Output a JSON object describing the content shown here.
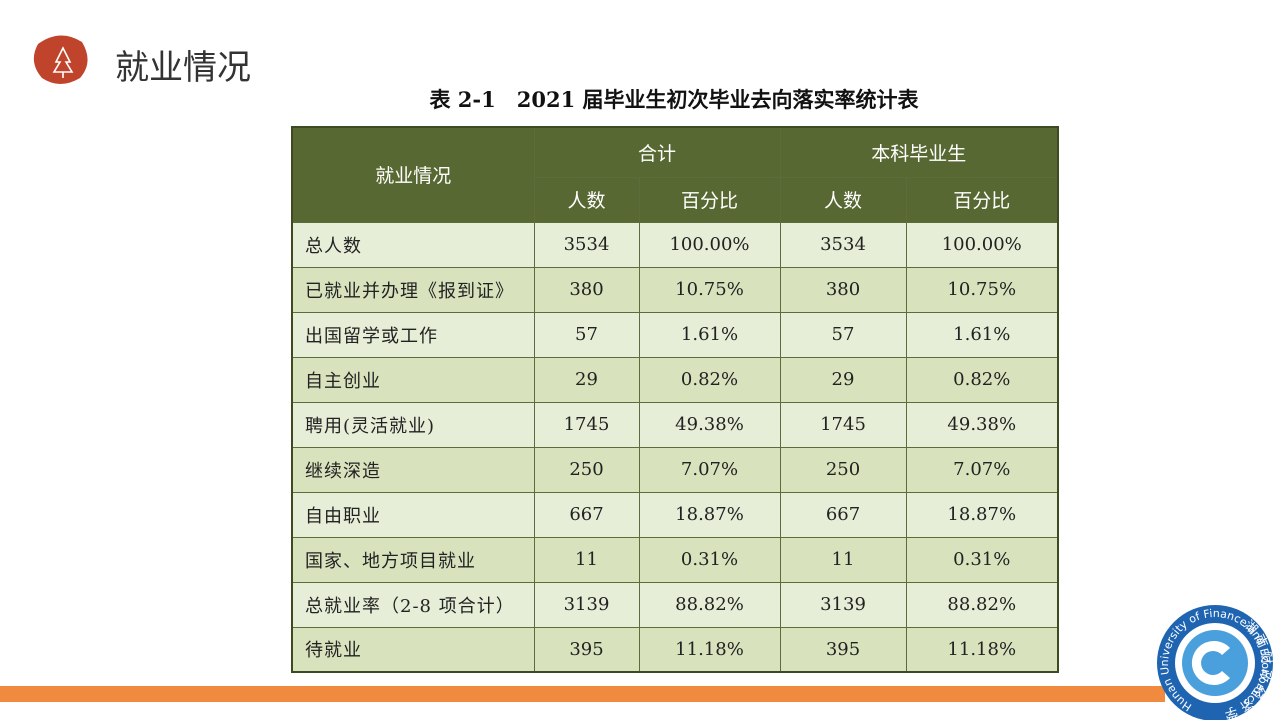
{
  "header": {
    "title": "就业情况"
  },
  "logo": {
    "cn": "湖南财政经济学院",
    "en": "Hunan University of Finance and Economics"
  },
  "table": {
    "caption": "表 2-1　2021 届毕业生初次毕业去向落实率统计表",
    "corner": "就业情况",
    "groups": [
      "合计",
      "本科毕业生"
    ],
    "subheaders": [
      "人数",
      "百分比",
      "人数",
      "百分比"
    ],
    "rows": [
      [
        "总人数",
        3534,
        "100.00%",
        3534,
        "100.00%"
      ],
      [
        "已就业并办理《报到证》",
        380,
        "10.75%",
        380,
        "10.75%"
      ],
      [
        "出国留学或工作",
        57,
        "1.61%",
        57,
        "1.61%"
      ],
      [
        "自主创业",
        29,
        "0.82%",
        29,
        "0.82%"
      ],
      [
        "聘用(灵活就业)",
        1745,
        "49.38%",
        1745,
        "49.38%"
      ],
      [
        "继续深造",
        250,
        "7.07%",
        250,
        "7.07%"
      ],
      [
        "自由职业",
        667,
        "18.87%",
        667,
        "18.87%"
      ],
      [
        "国家、地方项目就业",
        11,
        "0.31%",
        11,
        "0.31%"
      ],
      [
        "总就业率（2-8 项合计）",
        3139,
        "88.82%",
        3139,
        "88.82%"
      ],
      [
        "待就业",
        395,
        "11.18%",
        395,
        "11.18%"
      ]
    ]
  }
}
